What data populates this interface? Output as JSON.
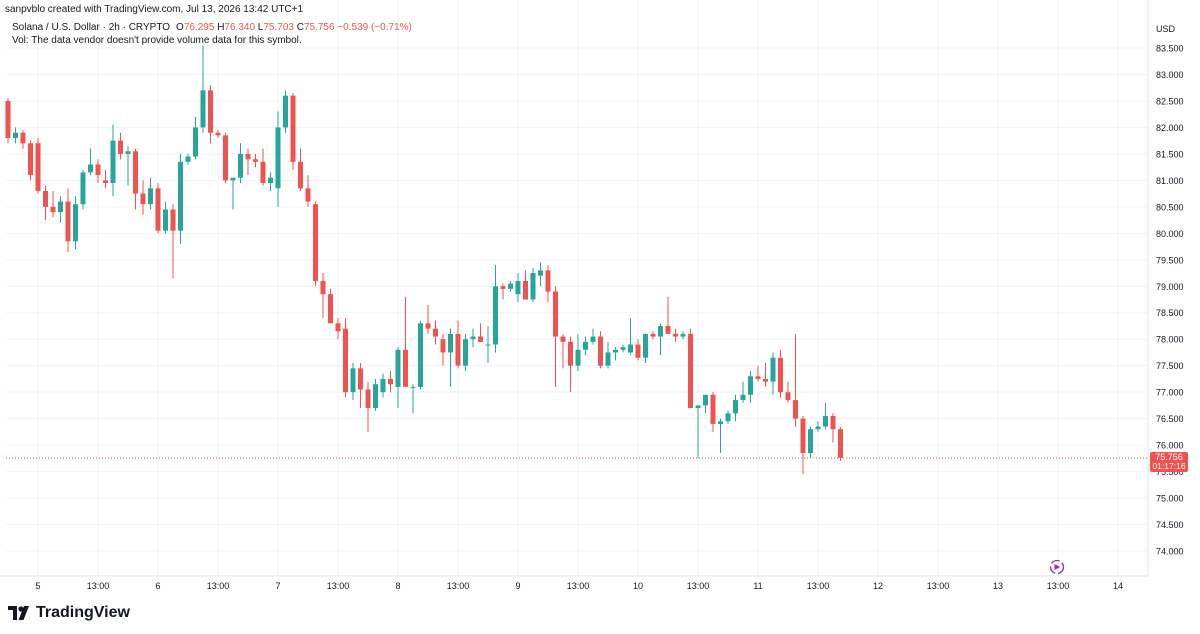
{
  "header": {
    "attribution": "sanpvblo created with TradingView.com, Jul 13, 2026 13:42 UTC+1",
    "symbol": "Solana / U.S. Dollar · 2h · CRYPTO",
    "o_label": "O",
    "o_value": "76.295",
    "h_label": "H",
    "h_value": "76.340",
    "l_label": "L",
    "l_value": "75.703",
    "c_label": "C",
    "c_value": "75.756",
    "change": "−0.539 (−0.71%)",
    "vol_note": "Vol: The data vendor doesn't provide volume data for this symbol."
  },
  "footer": {
    "brand": "TradingView"
  },
  "colors": {
    "up": "#26a69a",
    "down": "#ef5350",
    "grid": "#f0f3fa",
    "text": "#131722"
  },
  "icons": {
    "logo": "tradingview-logo-icon",
    "replay": "replay-icon"
  },
  "chart_data": {
    "type": "candlestick",
    "title": "Solana / U.S. Dollar · 2h · CRYPTO",
    "currency": "USD",
    "ylim": [
      73.6,
      83.75
    ],
    "y_ticks": [
      "83.500",
      "83.000",
      "82.500",
      "82.000",
      "81.500",
      "81.000",
      "80.500",
      "80.000",
      "79.500",
      "79.000",
      "78.500",
      "78.000",
      "77.500",
      "77.000",
      "76.500",
      "76.000",
      "75.500",
      "75.000",
      "74.500",
      "74.000"
    ],
    "x_ticks": [
      "5",
      "13:00",
      "6",
      "13:00",
      "7",
      "13:00",
      "8",
      "13:00",
      "9",
      "13:00",
      "10",
      "13:00",
      "11",
      "13:00",
      "12",
      "13:00",
      "13",
      "13:00",
      "14"
    ],
    "last_price": "75.756",
    "countdown": "01:17:16",
    "grid": true,
    "candles": [
      {
        "o": 82.5,
        "h": 82.55,
        "l": 81.7,
        "c": 81.8
      },
      {
        "o": 81.8,
        "h": 82.0,
        "l": 81.7,
        "c": 81.9
      },
      {
        "o": 81.9,
        "h": 81.95,
        "l": 81.6,
        "c": 81.7
      },
      {
        "o": 81.7,
        "h": 81.75,
        "l": 81.0,
        "c": 81.1
      },
      {
        "o": 81.7,
        "h": 81.8,
        "l": 80.75,
        "c": 80.8
      },
      {
        "o": 80.8,
        "h": 80.9,
        "l": 80.25,
        "c": 80.5
      },
      {
        "o": 80.5,
        "h": 80.8,
        "l": 80.3,
        "c": 80.4
      },
      {
        "o": 80.4,
        "h": 80.7,
        "l": 80.2,
        "c": 80.6
      },
      {
        "o": 80.6,
        "h": 80.85,
        "l": 79.65,
        "c": 79.85
      },
      {
        "o": 79.85,
        "h": 80.7,
        "l": 79.7,
        "c": 80.55
      },
      {
        "o": 80.55,
        "h": 81.2,
        "l": 80.45,
        "c": 81.15
      },
      {
        "o": 81.15,
        "h": 81.6,
        "l": 81.1,
        "c": 81.3
      },
      {
        "o": 81.3,
        "h": 81.4,
        "l": 80.95,
        "c": 81.1
      },
      {
        "o": 81.0,
        "h": 81.2,
        "l": 80.85,
        "c": 80.95
      },
      {
        "o": 80.95,
        "h": 82.05,
        "l": 80.7,
        "c": 81.75
      },
      {
        "o": 81.75,
        "h": 81.9,
        "l": 81.4,
        "c": 81.5
      },
      {
        "o": 81.5,
        "h": 81.65,
        "l": 80.9,
        "c": 81.55
      },
      {
        "o": 81.55,
        "h": 81.6,
        "l": 80.45,
        "c": 80.75
      },
      {
        "o": 80.75,
        "h": 81.0,
        "l": 80.35,
        "c": 80.55
      },
      {
        "o": 80.55,
        "h": 81.05,
        "l": 80.45,
        "c": 80.85
      },
      {
        "o": 80.85,
        "h": 80.95,
        "l": 80.0,
        "c": 80.05
      },
      {
        "o": 80.05,
        "h": 80.6,
        "l": 80.0,
        "c": 80.45
      },
      {
        "o": 80.45,
        "h": 80.55,
        "l": 79.15,
        "c": 80.05
      },
      {
        "o": 80.05,
        "h": 81.5,
        "l": 79.8,
        "c": 81.35
      },
      {
        "o": 81.35,
        "h": 81.5,
        "l": 81.3,
        "c": 81.45
      },
      {
        "o": 81.45,
        "h": 82.2,
        "l": 81.4,
        "c": 82.0
      },
      {
        "o": 82.0,
        "h": 83.55,
        "l": 81.9,
        "c": 82.7
      },
      {
        "o": 82.7,
        "h": 82.8,
        "l": 81.7,
        "c": 81.9
      },
      {
        "o": 81.9,
        "h": 81.95,
        "l": 81.8,
        "c": 81.85
      },
      {
        "o": 81.85,
        "h": 81.9,
        "l": 80.95,
        "c": 81.0
      },
      {
        "o": 81.0,
        "h": 81.05,
        "l": 80.45,
        "c": 81.05
      },
      {
        "o": 81.05,
        "h": 81.7,
        "l": 80.95,
        "c": 81.5
      },
      {
        "o": 81.5,
        "h": 81.6,
        "l": 81.1,
        "c": 81.4
      },
      {
        "o": 81.4,
        "h": 81.5,
        "l": 81.25,
        "c": 81.35
      },
      {
        "o": 81.35,
        "h": 81.6,
        "l": 80.9,
        "c": 80.95
      },
      {
        "o": 80.95,
        "h": 81.15,
        "l": 80.8,
        "c": 81.05
      },
      {
        "o": 80.85,
        "h": 82.3,
        "l": 80.5,
        "c": 82.0
      },
      {
        "o": 82.0,
        "h": 82.7,
        "l": 81.9,
        "c": 82.6
      },
      {
        "o": 82.6,
        "h": 82.65,
        "l": 81.2,
        "c": 81.35
      },
      {
        "o": 81.35,
        "h": 81.6,
        "l": 80.8,
        "c": 80.85
      },
      {
        "o": 80.85,
        "h": 81.1,
        "l": 80.5,
        "c": 80.6
      },
      {
        "o": 80.55,
        "h": 80.6,
        "l": 79.0,
        "c": 79.1
      },
      {
        "o": 79.1,
        "h": 79.25,
        "l": 78.4,
        "c": 78.85
      },
      {
        "o": 78.85,
        "h": 78.95,
        "l": 78.35,
        "c": 78.3
      },
      {
        "o": 78.3,
        "h": 78.4,
        "l": 78.0,
        "c": 78.15
      },
      {
        "o": 78.2,
        "h": 78.4,
        "l": 76.9,
        "c": 77.0
      },
      {
        "o": 77.0,
        "h": 77.55,
        "l": 76.85,
        "c": 77.45
      },
      {
        "o": 77.45,
        "h": 77.55,
        "l": 76.7,
        "c": 77.05
      },
      {
        "o": 77.05,
        "h": 77.2,
        "l": 76.25,
        "c": 76.7
      },
      {
        "o": 76.7,
        "h": 77.25,
        "l": 76.65,
        "c": 77.15
      },
      {
        "o": 77.0,
        "h": 77.35,
        "l": 76.9,
        "c": 77.25
      },
      {
        "o": 77.25,
        "h": 77.4,
        "l": 77.0,
        "c": 77.15
      },
      {
        "o": 77.1,
        "h": 77.85,
        "l": 76.7,
        "c": 77.8
      },
      {
        "o": 77.8,
        "h": 78.8,
        "l": 77.15,
        "c": 77.1
      },
      {
        "o": 77.1,
        "h": 77.15,
        "l": 76.6,
        "c": 77.1
      },
      {
        "o": 77.1,
        "h": 78.35,
        "l": 77.05,
        "c": 78.3
      },
      {
        "o": 78.3,
        "h": 78.65,
        "l": 78.1,
        "c": 78.2
      },
      {
        "o": 78.2,
        "h": 78.35,
        "l": 77.9,
        "c": 78.05
      },
      {
        "o": 78.0,
        "h": 78.1,
        "l": 77.5,
        "c": 77.75
      },
      {
        "o": 77.75,
        "h": 78.2,
        "l": 77.1,
        "c": 78.1
      },
      {
        "o": 78.1,
        "h": 78.35,
        "l": 77.45,
        "c": 77.5
      },
      {
        "o": 77.5,
        "h": 78.1,
        "l": 77.4,
        "c": 78.0
      },
      {
        "o": 78.0,
        "h": 78.2,
        "l": 77.85,
        "c": 78.05
      },
      {
        "o": 78.05,
        "h": 78.3,
        "l": 77.95,
        "c": 77.95
      },
      {
        "o": 77.9,
        "h": 78.25,
        "l": 77.55,
        "c": 77.9
      },
      {
        "o": 77.9,
        "h": 79.4,
        "l": 77.75,
        "c": 79.0
      },
      {
        "o": 79.0,
        "h": 79.05,
        "l": 78.75,
        "c": 78.95
      },
      {
        "o": 78.95,
        "h": 79.1,
        "l": 78.9,
        "c": 79.05
      },
      {
        "o": 78.85,
        "h": 79.25,
        "l": 78.7,
        "c": 79.1
      },
      {
        "o": 79.1,
        "h": 79.3,
        "l": 78.8,
        "c": 78.75
      },
      {
        "o": 78.75,
        "h": 79.35,
        "l": 78.7,
        "c": 79.25
      },
      {
        "o": 79.2,
        "h": 79.45,
        "l": 79.0,
        "c": 79.3
      },
      {
        "o": 79.3,
        "h": 79.4,
        "l": 78.7,
        "c": 78.9
      },
      {
        "o": 78.9,
        "h": 79.0,
        "l": 77.1,
        "c": 78.05
      },
      {
        "o": 78.05,
        "h": 78.1,
        "l": 77.45,
        "c": 77.95
      },
      {
        "o": 77.95,
        "h": 78.05,
        "l": 77.0,
        "c": 77.5
      },
      {
        "o": 77.5,
        "h": 78.1,
        "l": 77.4,
        "c": 77.8
      },
      {
        "o": 77.8,
        "h": 78.05,
        "l": 77.7,
        "c": 77.95
      },
      {
        "o": 77.95,
        "h": 78.2,
        "l": 77.9,
        "c": 78.05
      },
      {
        "o": 78.05,
        "h": 78.15,
        "l": 77.45,
        "c": 77.5
      },
      {
        "o": 77.5,
        "h": 77.95,
        "l": 77.45,
        "c": 77.75
      },
      {
        "o": 77.75,
        "h": 77.85,
        "l": 77.6,
        "c": 77.8
      },
      {
        "o": 77.8,
        "h": 77.9,
        "l": 77.75,
        "c": 77.85
      },
      {
        "o": 77.75,
        "h": 78.4,
        "l": 77.7,
        "c": 77.9
      },
      {
        "o": 77.9,
        "h": 78.0,
        "l": 77.6,
        "c": 77.65
      },
      {
        "o": 77.65,
        "h": 78.1,
        "l": 77.55,
        "c": 78.1
      },
      {
        "o": 78.1,
        "h": 78.15,
        "l": 78.0,
        "c": 78.05
      },
      {
        "o": 78.05,
        "h": 78.3,
        "l": 77.7,
        "c": 78.25
      },
      {
        "o": 78.25,
        "h": 78.8,
        "l": 78.15,
        "c": 78.1
      },
      {
        "o": 78.1,
        "h": 78.2,
        "l": 77.95,
        "c": 78.05
      },
      {
        "o": 78.05,
        "h": 78.15,
        "l": 78.0,
        "c": 78.1
      },
      {
        "o": 78.1,
        "h": 78.2,
        "l": 76.75,
        "c": 76.7
      },
      {
        "o": 76.7,
        "h": 76.75,
        "l": 75.75,
        "c": 76.75
      },
      {
        "o": 76.75,
        "h": 76.95,
        "l": 76.6,
        "c": 76.95
      },
      {
        "o": 76.95,
        "h": 77.0,
        "l": 76.25,
        "c": 76.4
      },
      {
        "o": 76.4,
        "h": 76.5,
        "l": 75.85,
        "c": 76.45
      },
      {
        "o": 76.45,
        "h": 76.65,
        "l": 76.4,
        "c": 76.6
      },
      {
        "o": 76.6,
        "h": 76.95,
        "l": 76.45,
        "c": 76.85
      },
      {
        "o": 76.85,
        "h": 77.2,
        "l": 76.8,
        "c": 76.95
      },
      {
        "o": 76.95,
        "h": 77.4,
        "l": 76.8,
        "c": 77.3
      },
      {
        "o": 77.3,
        "h": 77.5,
        "l": 77.2,
        "c": 77.25
      },
      {
        "o": 77.25,
        "h": 77.55,
        "l": 77.1,
        "c": 77.2
      },
      {
        "o": 77.2,
        "h": 77.75,
        "l": 76.95,
        "c": 77.65
      },
      {
        "o": 77.65,
        "h": 77.8,
        "l": 76.9,
        "c": 77.0
      },
      {
        "o": 77.0,
        "h": 77.2,
        "l": 76.8,
        "c": 76.85
      },
      {
        "o": 76.85,
        "h": 78.1,
        "l": 76.35,
        "c": 76.5
      },
      {
        "o": 76.5,
        "h": 76.55,
        "l": 75.45,
        "c": 75.85
      },
      {
        "o": 75.85,
        "h": 76.35,
        "l": 75.75,
        "c": 76.3
      },
      {
        "o": 76.3,
        "h": 76.45,
        "l": 76.25,
        "c": 76.35
      },
      {
        "o": 76.35,
        "h": 76.8,
        "l": 76.3,
        "c": 76.55
      },
      {
        "o": 76.55,
        "h": 76.6,
        "l": 76.05,
        "c": 76.3
      },
      {
        "o": 76.3,
        "h": 76.34,
        "l": 75.7,
        "c": 75.76
      }
    ]
  }
}
